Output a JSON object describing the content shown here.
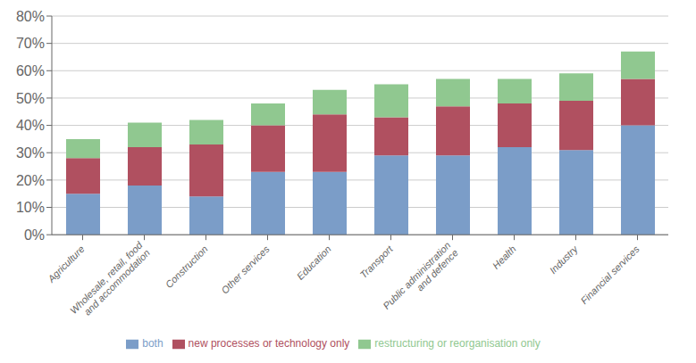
{
  "chart_data": {
    "type": "bar",
    "stacked": true,
    "categories": [
      "Agriculture",
      "Wholesale, retail, food\nand accommodation",
      "Construction",
      "Other services",
      "Education",
      "Transport",
      "Public administration\nand defence",
      "Health",
      "Industry",
      "Financial services"
    ],
    "series": [
      {
        "name": "both",
        "color": "#7B9DC8",
        "values": [
          15,
          18,
          14,
          23,
          23,
          29,
          29,
          32,
          31,
          40
        ]
      },
      {
        "name": "new processes or technology only",
        "color": "#B05060",
        "values": [
          13,
          14,
          19,
          17,
          21,
          14,
          18,
          16,
          18,
          17
        ]
      },
      {
        "name": "restructuring or reorganisation only",
        "color": "#90C890",
        "values": [
          7,
          9,
          9,
          8,
          9,
          12,
          10,
          9,
          10,
          10
        ]
      }
    ],
    "ylim": [
      0,
      80
    ],
    "yticks": [
      {
        "value": 0,
        "label": "0%"
      },
      {
        "value": 10,
        "label": "10%"
      },
      {
        "value": 20,
        "label": "20%"
      },
      {
        "value": 30,
        "label": "30%"
      },
      {
        "value": 40,
        "label": "40%"
      },
      {
        "value": 50,
        "label": "50%"
      },
      {
        "value": 60,
        "label": "60%"
      },
      {
        "value": 70,
        "label": "70%"
      },
      {
        "value": 80,
        "label": "80%"
      }
    ],
    "grid": true,
    "legend": "bottom"
  }
}
